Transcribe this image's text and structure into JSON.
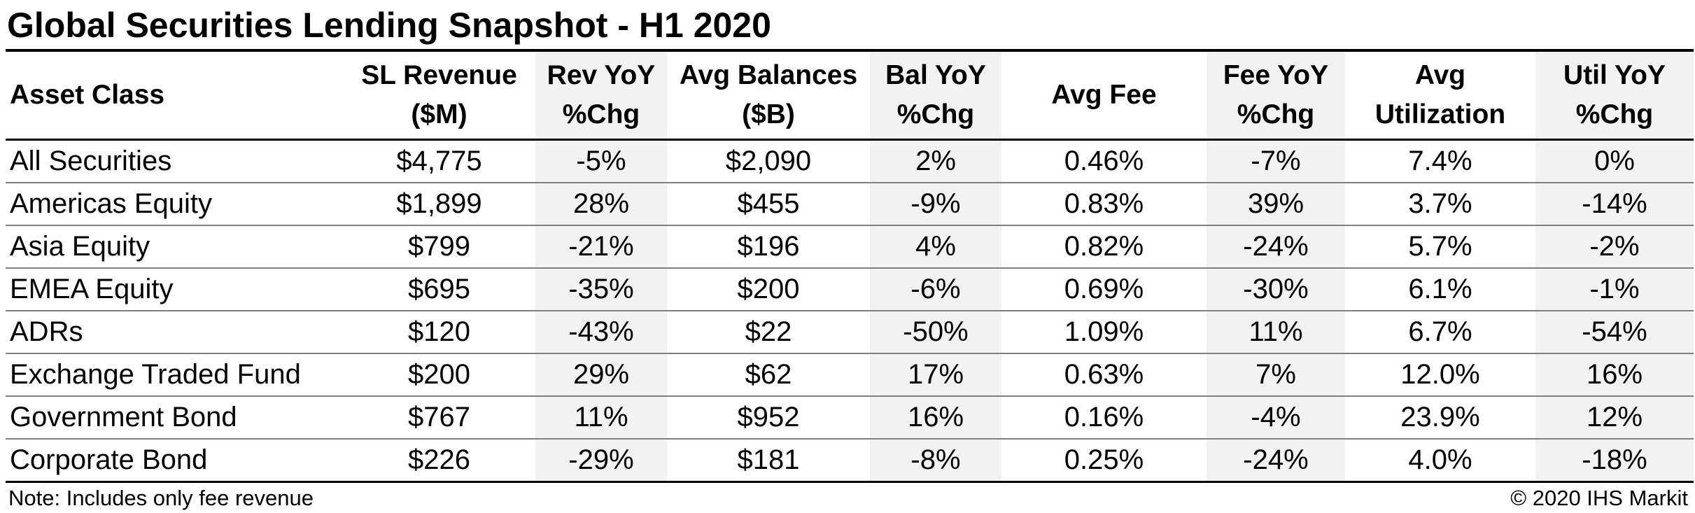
{
  "title": "Global Securities Lending Snapshot - H1 2020",
  "columns": [
    {
      "line1": "Asset Class",
      "line2": ""
    },
    {
      "line1": "SL Revenue",
      "line2": "($M)"
    },
    {
      "line1": "Rev YoY",
      "line2": "%Chg"
    },
    {
      "line1": "Avg Balances",
      "line2": "($B)"
    },
    {
      "line1": "Bal YoY",
      "line2": "%Chg"
    },
    {
      "line1": "Avg Fee",
      "line2": ""
    },
    {
      "line1": "Fee YoY",
      "line2": "%Chg"
    },
    {
      "line1": "Avg",
      "line2": "Utilization"
    },
    {
      "line1": "Util YoY",
      "line2": "%Chg"
    }
  ],
  "rows": [
    [
      "All Securities",
      "$4,775",
      "-5%",
      "$2,090",
      "2%",
      "0.46%",
      "-7%",
      "7.4%",
      "0%"
    ],
    [
      "Americas Equity",
      "$1,899",
      "28%",
      "$455",
      "-9%",
      "0.83%",
      "39%",
      "3.7%",
      "-14%"
    ],
    [
      "Asia Equity",
      "$799",
      "-21%",
      "$196",
      "4%",
      "0.82%",
      "-24%",
      "5.7%",
      "-2%"
    ],
    [
      "EMEA Equity",
      "$695",
      "-35%",
      "$200",
      "-6%",
      "0.69%",
      "-30%",
      "6.1%",
      "-1%"
    ],
    [
      "ADRs",
      "$120",
      "-43%",
      "$22",
      "-50%",
      "1.09%",
      "11%",
      "6.7%",
      "-54%"
    ],
    [
      "Exchange Traded Fund",
      "$200",
      "29%",
      "$62",
      "17%",
      "0.63%",
      "7%",
      "12.0%",
      "16%"
    ],
    [
      "Government Bond",
      "$767",
      "11%",
      "$952",
      "16%",
      "0.16%",
      "-4%",
      "23.9%",
      "12%"
    ],
    [
      "Corporate Bond",
      "$226",
      "-29%",
      "$181",
      "-8%",
      "0.25%",
      "-24%",
      "4.0%",
      "-18%"
    ]
  ],
  "footer": {
    "note": "Note: Includes only fee revenue",
    "copyright": "© 2020 IHS Markit"
  },
  "colors": {
    "shaded_column": "#f2f2f2",
    "rule": "#000000",
    "row_divider": "#7f7f7f"
  }
}
